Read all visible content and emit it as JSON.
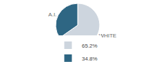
{
  "chart_data": {
    "type": "pie",
    "categories": [
      "WHITE",
      "A.I."
    ],
    "values": [
      65.2,
      34.8
    ],
    "value_labels": [
      "65.2%",
      "34.8%"
    ],
    "colors": [
      "#cdd5de",
      "#2e6683"
    ],
    "legend": "bottom"
  }
}
